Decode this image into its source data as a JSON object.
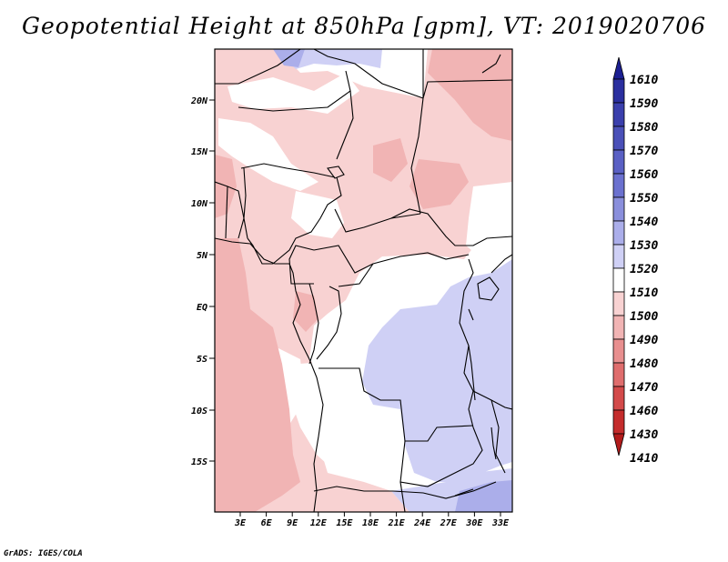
{
  "title": "Geopotential Height at 850hPa [gpm], VT: 2019020706",
  "credit": "GrADS: IGES/COLA",
  "map": {
    "lat_ticks": [
      "20N",
      "15N",
      "10N",
      "5N",
      "EQ",
      "5S",
      "10S",
      "15S"
    ],
    "lon_ticks": [
      "3E",
      "6E",
      "9E",
      "12E",
      "15E",
      "18E",
      "21E",
      "24E",
      "27E",
      "30E",
      "33E"
    ]
  },
  "colorbar": {
    "levels": [
      "1610",
      "1590",
      "1580",
      "1570",
      "1560",
      "1550",
      "1540",
      "1530",
      "1520",
      "1510",
      "1500",
      "1490",
      "1480",
      "1470",
      "1460",
      "1430",
      "1410"
    ],
    "colors": [
      "#1c1f92",
      "#2b2f9f",
      "#3a3fac",
      "#4a50b8",
      "#5a60c4",
      "#6b71cf",
      "#8a8fdc",
      "#abaeea",
      "#cfd0f5",
      "#ffffff",
      "#f8d2d2",
      "#f1b4b4",
      "#e88f8f",
      "#df6d6d",
      "#d34a4a",
      "#c42c2c",
      "#b21b1b"
    ]
  }
}
